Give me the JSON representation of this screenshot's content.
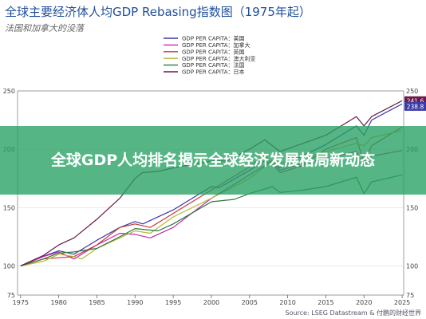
{
  "header": {
    "title": "全球主要经济体人均GDP Rebasing指数图（1975年起）",
    "subtitle": "法国和加拿大的没落"
  },
  "overlay": {
    "text": "全球GDP人均排名揭示全球经济发展格局新动态"
  },
  "source": "Source: LSEG Datastream & 付鹏的财经世界",
  "chart_data": {
    "type": "line",
    "xlim": [
      1974.6,
      2025.2
    ],
    "ylim": [
      75,
      250
    ],
    "x_ticks": [
      "1975",
      "1980",
      "1985",
      "1990",
      "1995",
      "2000",
      "2005",
      "2010",
      "2015",
      "2020",
      "2025"
    ],
    "y_ticks": [
      "75",
      "100",
      "150",
      "200",
      "250"
    ],
    "legend_position": "top-center",
    "series": [
      {
        "name": "GDP PER CAPITA：美国",
        "color": "#3a3aa8",
        "end_label": "",
        "x": [
          1975,
          1977,
          1980,
          1982,
          1985,
          1988,
          1990,
          1991,
          1995,
          2000,
          2001,
          2005,
          2007,
          2009,
          2010,
          2015,
          2019,
          2020,
          2021,
          2023,
          2025
        ],
        "y": [
          100,
          106,
          113,
          110,
          122,
          133,
          138,
          136,
          148,
          168,
          167,
          182,
          190,
          184,
          188,
          204,
          220,
          212,
          225,
          232,
          238.8
        ]
      },
      {
        "name": "GDP PER CAPITA：加拿大",
        "color": "#c428b0",
        "end_label": "",
        "x": [
          1975,
          1978,
          1980,
          1982,
          1985,
          1988,
          1990,
          1992,
          1995,
          2000,
          2005,
          2008,
          2009,
          2012,
          2015,
          2019,
          2020,
          2021,
          2025
        ],
        "y": [
          100,
          108,
          112,
          106,
          118,
          128,
          127,
          124,
          133,
          158,
          178,
          190,
          182,
          188,
          192,
          198,
          186,
          194,
          199
        ]
      },
      {
        "name": "GDP PER CAPITA：英国",
        "color": "#c23a3a",
        "end_label": "",
        "x": [
          1975,
          1978,
          1980,
          1982,
          1985,
          1988,
          1990,
          1992,
          1995,
          2000,
          2005,
          2007,
          2009,
          2012,
          2015,
          2019,
          2020,
          2021,
          2025
        ],
        "y": [
          100,
          106,
          107,
          108,
          118,
          133,
          136,
          133,
          145,
          165,
          185,
          195,
          180,
          186,
          200,
          210,
          188,
          203,
          219
        ]
      },
      {
        "name": "GDP PER CAPITA：澳大利亚",
        "color": "#b8b830",
        "end_label": "",
        "x": [
          1975,
          1978,
          1980,
          1982,
          1983,
          1985,
          1990,
          1992,
          1995,
          2000,
          2005,
          2008,
          2010,
          2015,
          2019,
          2020,
          2021,
          2025
        ],
        "y": [
          100,
          104,
          110,
          108,
          106,
          115,
          130,
          128,
          142,
          158,
          175,
          190,
          188,
          198,
          205,
          203,
          210,
          216
        ]
      },
      {
        "name": "GDP PER CAPITA：法国",
        "color": "#2a7a3a",
        "end_label": "",
        "x": [
          1975,
          1978,
          1980,
          1982,
          1985,
          1988,
          1990,
          1993,
          1995,
          2000,
          2003,
          2005,
          2008,
          2009,
          2012,
          2015,
          2019,
          2020,
          2021,
          2025
        ],
        "y": [
          100,
          106,
          111,
          112,
          115,
          125,
          132,
          130,
          136,
          155,
          157,
          162,
          168,
          163,
          165,
          168,
          176,
          162,
          172,
          178
        ]
      },
      {
        "name": "GDP PER CAPITA：日本",
        "color": "#6a1a4a",
        "end_label": "",
        "x": [
          1975,
          1978,
          1980,
          1982,
          1985,
          1988,
          1990,
          1991,
          1993,
          1995,
          2000,
          2002,
          2005,
          2007,
          2009,
          2012,
          2015,
          2019,
          2020,
          2021,
          2025
        ],
        "y": [
          100,
          109,
          118,
          124,
          140,
          158,
          175,
          180,
          181,
          184,
          190,
          190,
          200,
          208,
          198,
          205,
          212,
          228,
          220,
          228,
          241.6
        ]
      }
    ],
    "end_labels": [
      {
        "text": "241.6",
        "value": 241.6,
        "color": "#6a1a4a"
      },
      {
        "text": "238.8",
        "value": 238.8,
        "color": "#3a3aa8"
      }
    ]
  }
}
